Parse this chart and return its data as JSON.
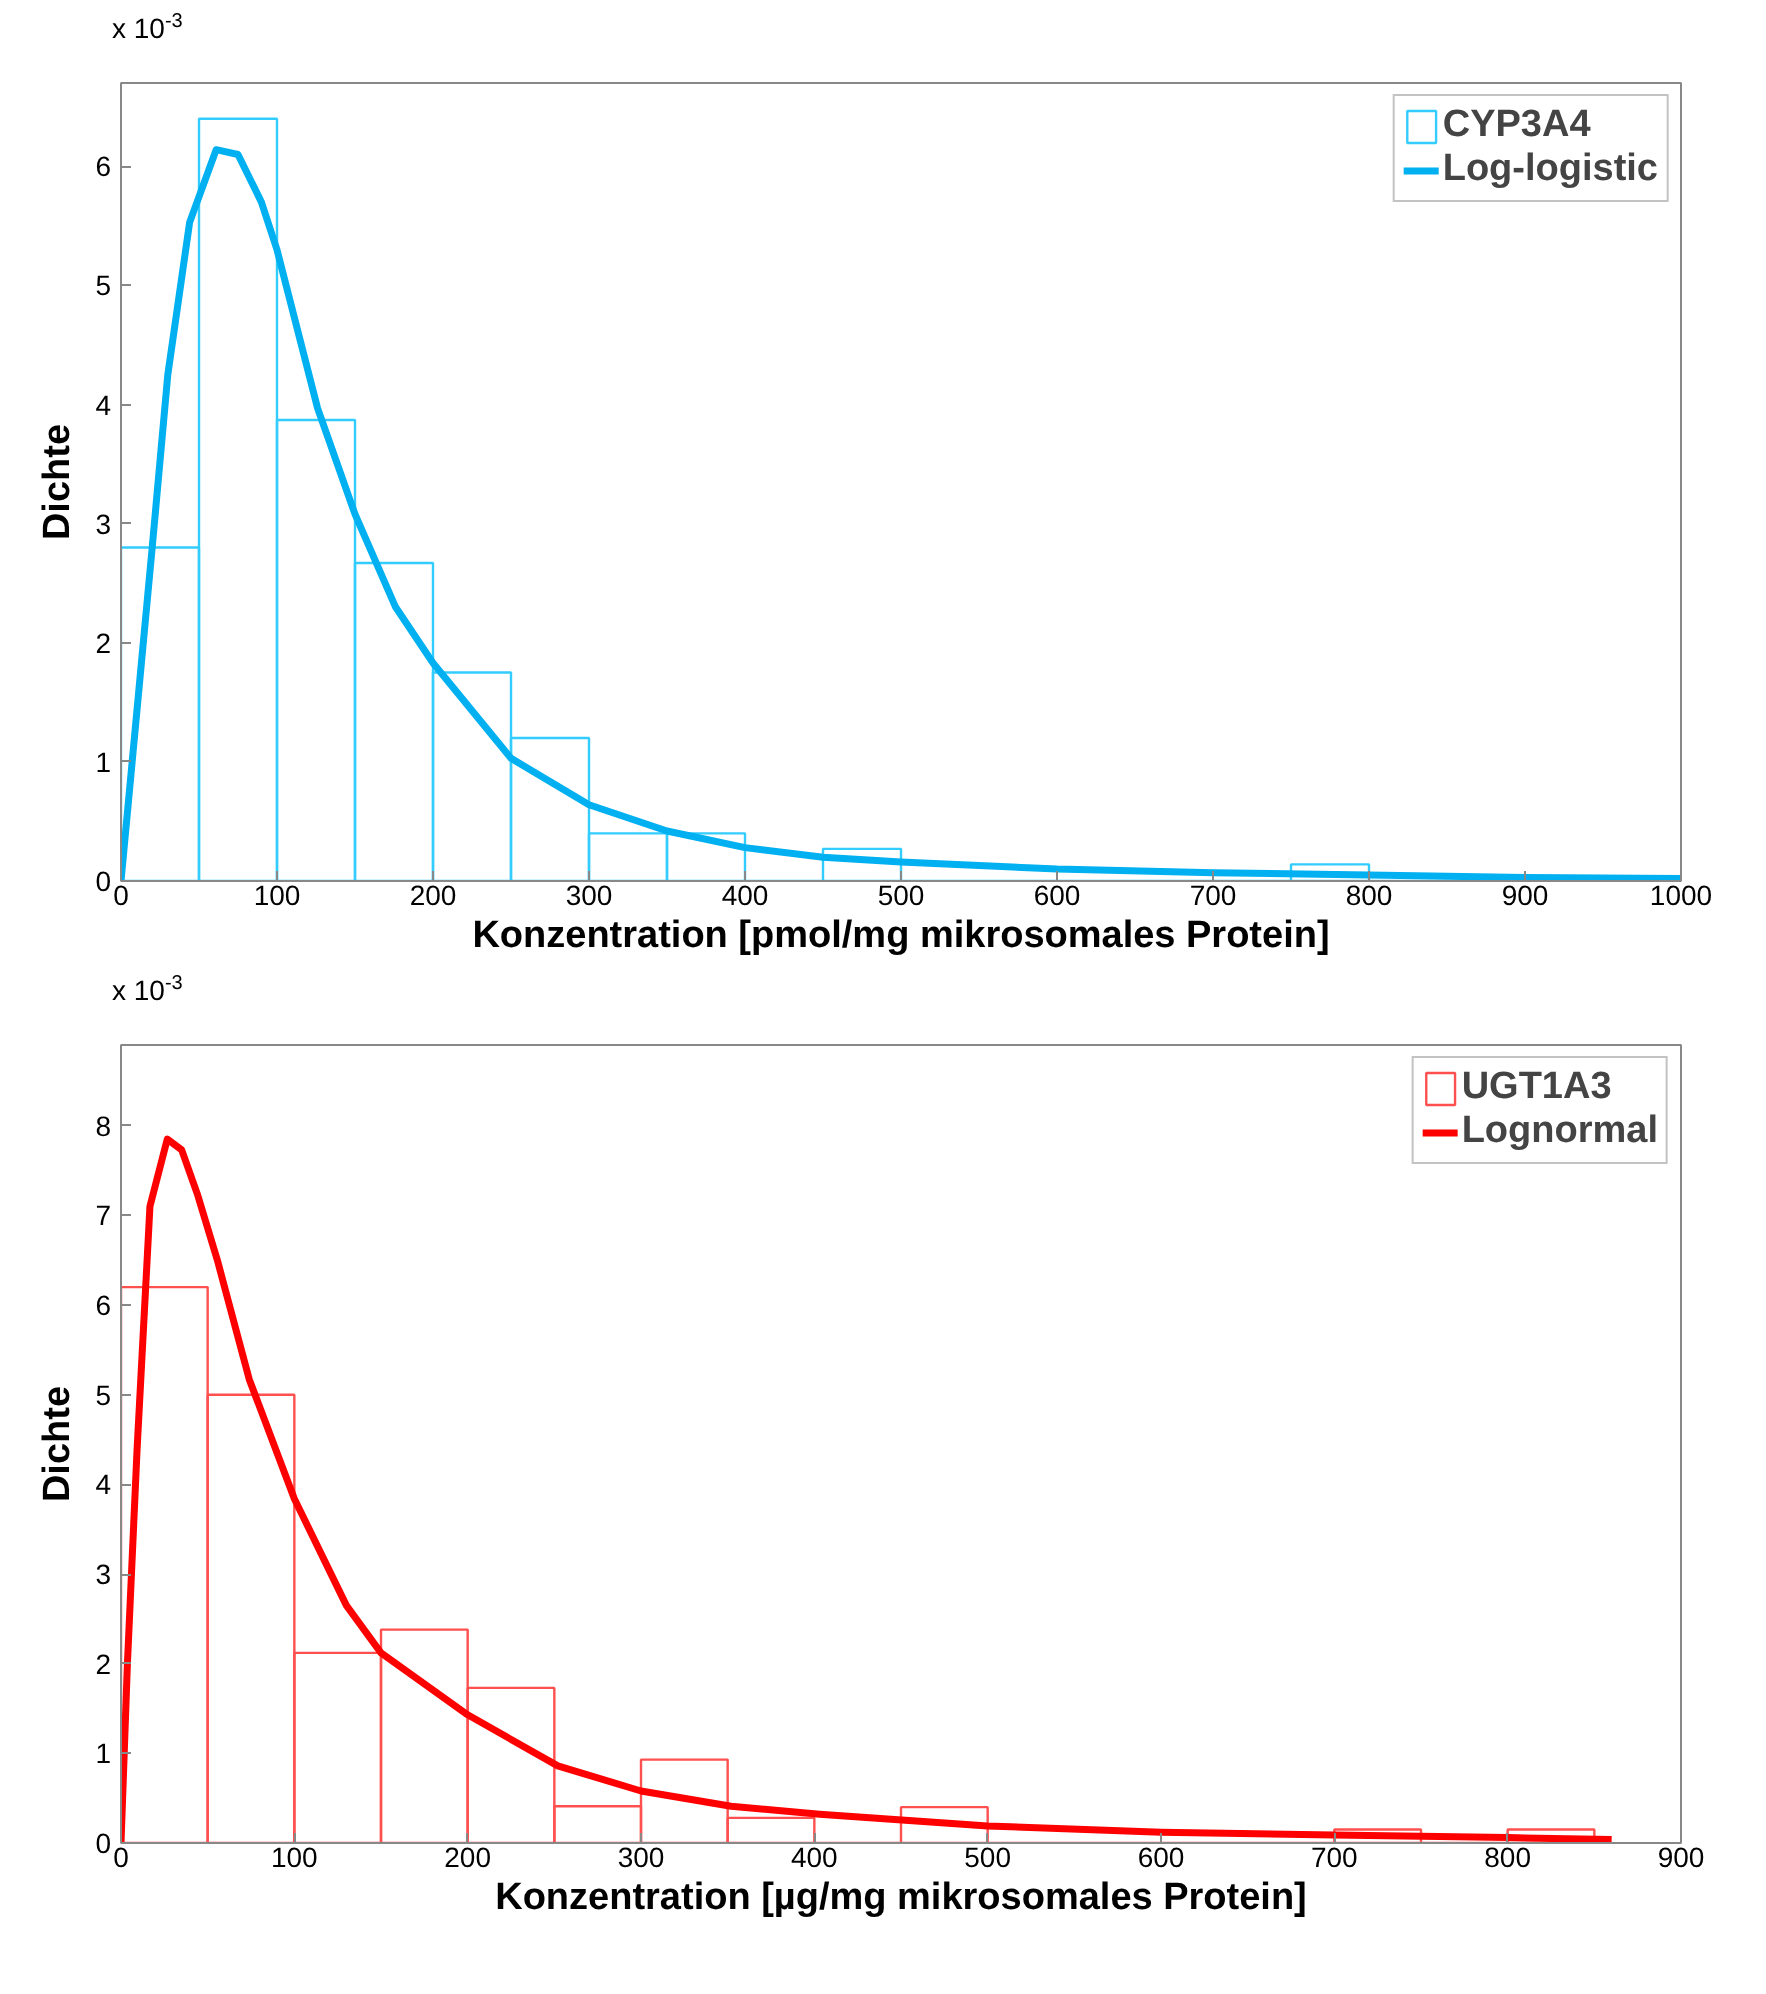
{
  "chart_data": [
    {
      "type": "histogram",
      "xlabel": "Konzentration [pmol/mg mikrosomales Protein]",
      "ylabel": "Dichte",
      "annotations": [
        "x 10$^{-3}$"
      ],
      "bins": [
        0,
        50,
        100,
        150,
        200,
        250,
        300,
        350,
        400,
        450,
        500,
        550,
        600,
        650,
        700,
        750,
        800,
        850,
        900,
        950,
        1000
      ],
      "series": [
        {
          "name": "CYP3A4",
          "color": "#33ccff",
          "values": [
            2.8,
            6.4,
            3.87,
            2.67,
            1.75,
            1.2,
            0.4,
            0.4,
            0,
            0.27,
            0,
            0,
            0,
            0,
            0,
            0.14,
            0,
            0,
            0,
            0
          ]
        },
        {
          "name": "Log-logistic",
          "type": "line",
          "color": "#00b0f0",
          "x": [
            0,
            20,
            30,
            44,
            61,
            75,
            90,
            100,
            126,
            150,
            176,
            200,
            250,
            300,
            350,
            400,
            450,
            500,
            600,
            700,
            800,
            900,
            1000
          ],
          "values": [
            0,
            2.8,
            4.25,
            5.53,
            6.14,
            6.1,
            5.7,
            5.3,
            3.97,
            3.08,
            2.3,
            1.83,
            1.03,
            0.64,
            0.42,
            0.28,
            0.2,
            0.16,
            0.1,
            0.07,
            0.05,
            0.03,
            0.02
          ]
        }
      ],
      "xlim": [
        0,
        1000
      ],
      "xticks": [
        0,
        100,
        200,
        300,
        400,
        500,
        600,
        700,
        800,
        900,
        1000
      ],
      "ylim": [
        0,
        6.7
      ],
      "yticks": [
        0,
        1,
        2,
        3,
        4,
        5,
        6
      ],
      "grid": false,
      "legend": "top right"
    },
    {
      "type": "histogram",
      "xlabel": "Konzentration [µg/mg mikrosomales Protein]",
      "ylabel": "Dichte",
      "annotations": [
        "x 10$^{-3}$"
      ],
      "bins": [
        0,
        50,
        100,
        150,
        200,
        250,
        300,
        350,
        400,
        450,
        500,
        550,
        600,
        650,
        700,
        750,
        800,
        850
      ],
      "series": [
        {
          "name": "UGT1A3",
          "color": "#ff5050",
          "values": [
            6.2,
            5.0,
            2.12,
            2.38,
            1.73,
            0.41,
            0.93,
            0.28,
            0,
            0.4,
            0,
            0,
            0,
            0,
            0.15,
            0,
            0.15
          ]
        },
        {
          "name": "Lognormal",
          "type": "line",
          "color": "#ff0000",
          "x": [
            0,
            3.7,
            9.3,
            16.7,
            26.7,
            35,
            44,
            55.6,
            74,
            100,
            130,
            150,
            200,
            252,
            300,
            352,
            403,
            500,
            600,
            700,
            800,
            860
          ],
          "values": [
            0,
            2.0,
            4.4,
            7.1,
            7.85,
            7.73,
            7.24,
            6.5,
            5.17,
            3.84,
            2.65,
            2.12,
            1.43,
            0.86,
            0.58,
            0.41,
            0.32,
            0.19,
            0.12,
            0.09,
            0.06,
            0.04
          ]
        }
      ],
      "xlim": [
        0,
        900
      ],
      "xticks": [
        0,
        100,
        200,
        300,
        400,
        500,
        600,
        700,
        800,
        900
      ],
      "ylim": [
        0,
        8.9
      ],
      "yticks": [
        0,
        1,
        2,
        3,
        4,
        5,
        6,
        7,
        8
      ],
      "grid": false,
      "legend": "top right"
    }
  ]
}
